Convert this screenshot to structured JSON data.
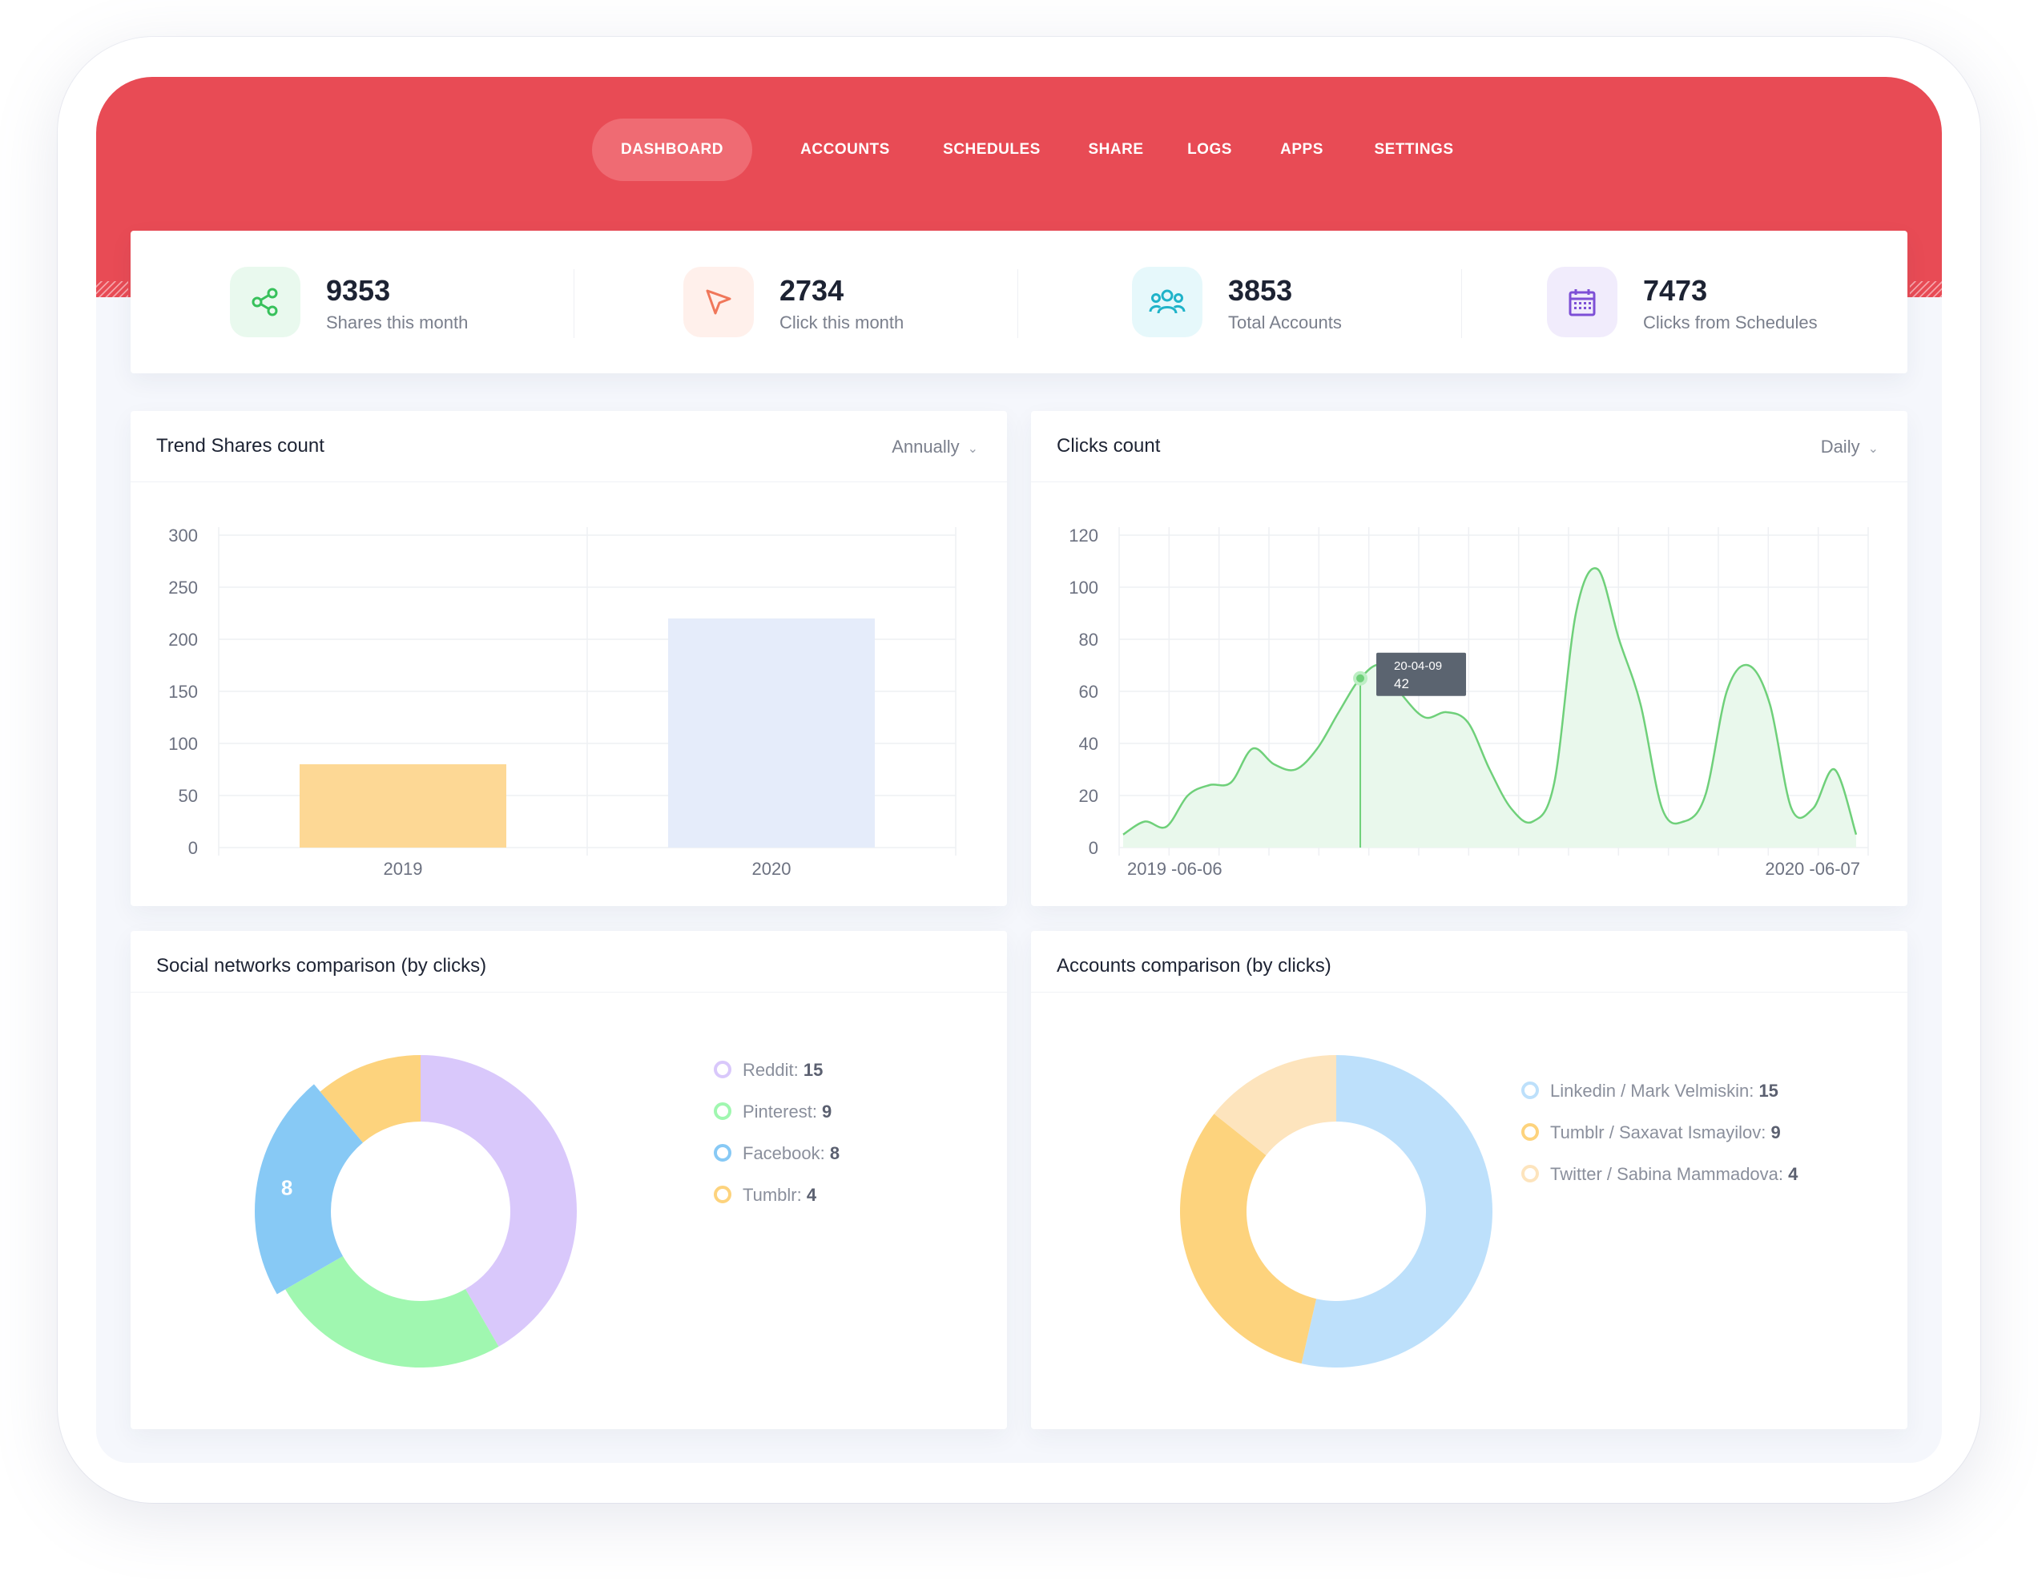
{
  "nav": {
    "items": [
      {
        "label": "DASHBOARD",
        "active": true
      },
      {
        "label": "ACCOUNTS",
        "active": false
      },
      {
        "label": "SCHEDULES",
        "active": false
      },
      {
        "label": "SHARE",
        "active": false
      },
      {
        "label": "LOGS",
        "active": false
      },
      {
        "label": "APPS",
        "active": false
      },
      {
        "label": "SETTINGS",
        "active": false
      }
    ]
  },
  "stats": [
    {
      "value": "9353",
      "label": "Shares this month",
      "icon": "share-icon",
      "color": "#37c15b",
      "bg": "#e9f9ee"
    },
    {
      "value": "2734",
      "label": "Click this month",
      "icon": "cursor-icon",
      "color": "#f0775a",
      "bg": "#fff0eb"
    },
    {
      "value": "3853",
      "label": "Total Accounts",
      "icon": "users-icon",
      "color": "#1fb3c9",
      "bg": "#e6f8fb"
    },
    {
      "value": "7473",
      "label": "Clicks from Schedules",
      "icon": "calendar-icon",
      "color": "#7d4fd6",
      "bg": "#f1ecfc"
    }
  ],
  "trend_card": {
    "title": "Trend Shares count",
    "filter": "Annually"
  },
  "clicks_card": {
    "title": "Clicks count",
    "filter": "Daily"
  },
  "social_card": {
    "title": "Social networks comparison (by clicks)"
  },
  "accounts_card": {
    "title": "Accounts comparison (by clicks)"
  },
  "colors": {
    "accent": "#e84b55",
    "line": "#6fd07a"
  },
  "chart_data": [
    {
      "type": "bar",
      "title": "Trend Shares count",
      "categories": [
        "2019",
        "2020"
      ],
      "values": [
        80,
        220
      ],
      "colors": [
        "#fdd895",
        "#e5ecfa"
      ],
      "yticks": [
        "300",
        "250",
        "200",
        "150",
        "100",
        "50",
        "0"
      ],
      "ylim": [
        0,
        300
      ],
      "grid": true
    },
    {
      "type": "area",
      "title": "Clicks count",
      "x": [
        "2019 -06-06",
        "",
        "",
        "",
        "",
        "",
        "",
        "",
        "",
        "",
        "",
        "",
        "",
        "",
        "",
        "",
        "",
        "",
        "",
        "",
        "",
        "",
        "",
        "",
        "",
        "",
        "",
        "",
        "",
        "",
        "",
        "",
        "",
        "",
        "2020 -06-07"
      ],
      "y": [
        5,
        10,
        8,
        20,
        24,
        25,
        38,
        32,
        30,
        38,
        52,
        65,
        70,
        58,
        50,
        52,
        48,
        30,
        15,
        10,
        25,
        90,
        107,
        80,
        55,
        15,
        10,
        20,
        60,
        70,
        55,
        15,
        15,
        30,
        5
      ],
      "xtick_labels": [
        "2019 -06-06",
        "2020 -06-07"
      ],
      "yticks": [
        "120",
        "100",
        "80",
        "60",
        "40",
        "20",
        "0"
      ],
      "ylim": [
        0,
        120
      ],
      "tooltip": {
        "date": "20-04-09",
        "value": "42"
      },
      "grid": true
    },
    {
      "type": "pie",
      "title": "Social networks comparison (by clicks)",
      "labels": [
        "Reddit",
        "Pinterest",
        "Facebook",
        "Tumblr"
      ],
      "values": [
        15,
        9,
        8,
        4
      ],
      "colors": [
        "#d9c8fb",
        "#a0f7b0",
        "#87c9f5",
        "#fdd37d"
      ],
      "legend": [
        {
          "name": "Reddit",
          "value": "15",
          "color": "#d9c8fb"
        },
        {
          "name": "Pinterest",
          "value": "9",
          "color": "#a0f7b0"
        },
        {
          "name": "Facebook",
          "value": "8",
          "color": "#87c9f5"
        },
        {
          "name": "Tumblr",
          "value": "4",
          "color": "#fdd37d"
        }
      ],
      "highlight_label": "8"
    },
    {
      "type": "pie",
      "title": "Accounts comparison (by clicks)",
      "labels": [
        "Linkedin / Mark Velmiskin",
        "Tumblr / Saxavat Ismayilov",
        "Twitter / Sabina Mammadova"
      ],
      "values": [
        15,
        9,
        4
      ],
      "colors": [
        "#bde0fb",
        "#fdd37d",
        "#fde4bd"
      ],
      "legend": [
        {
          "name": "Linkedin / Mark Velmiskin",
          "value": "15",
          "color": "#bde0fb"
        },
        {
          "name": "Tumblr / Saxavat Ismayilov",
          "value": "9",
          "color": "#fdd37d"
        },
        {
          "name": "Twitter / Sabina Mammadova",
          "value": "4",
          "color": "#fde4bd"
        }
      ]
    }
  ]
}
